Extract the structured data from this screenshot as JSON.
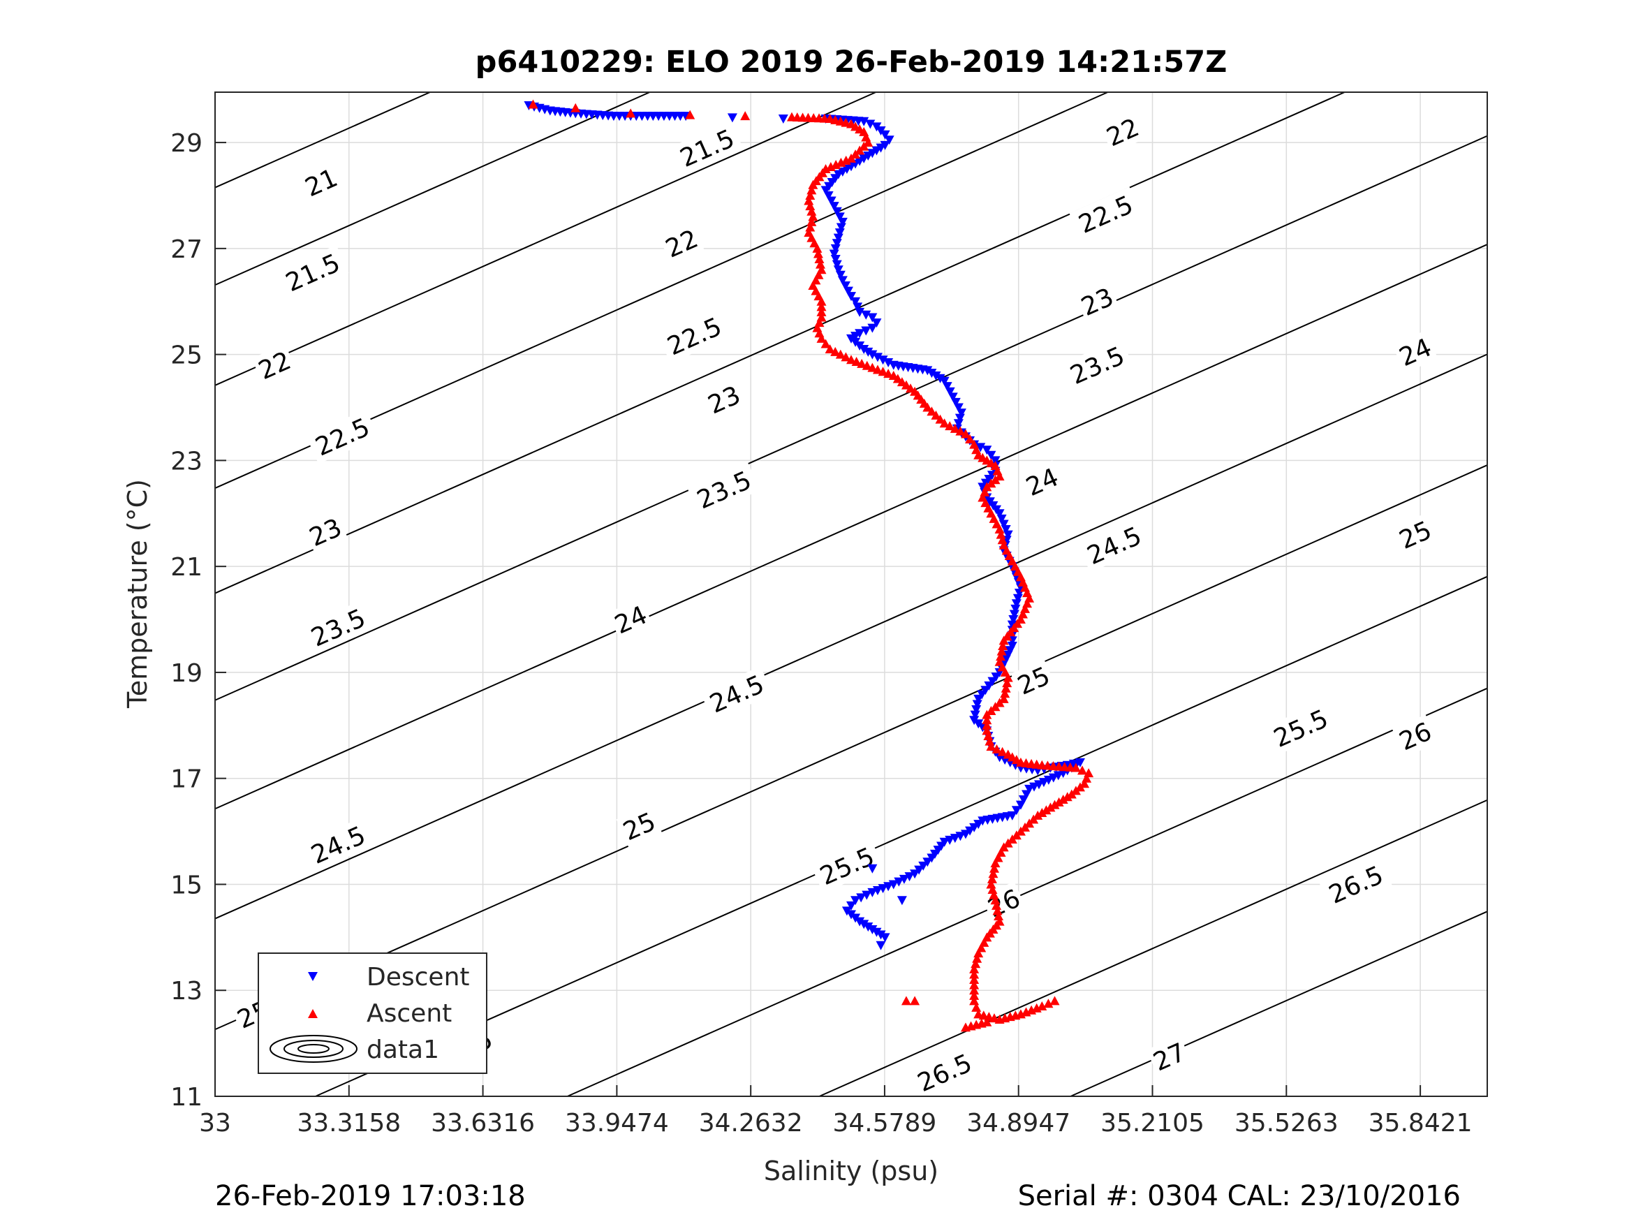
{
  "chart_data": {
    "type": "scatter",
    "title": "p6410229: ELO 2019 26-Feb-2019 14:21:57Z",
    "xlabel": "Salinity (psu)",
    "ylabel": "Temperature (°C)",
    "xlim": [
      33,
      36.0
    ],
    "ylim": [
      11,
      29.95
    ],
    "x_ticks": [
      "33",
      "33.3158",
      "33.6316",
      "33.9474",
      "34.2632",
      "34.5789",
      "34.8947",
      "35.2105",
      "35.5263",
      "35.8421"
    ],
    "y_ticks": [
      "11",
      "13",
      "15",
      "17",
      "19",
      "21",
      "23",
      "25",
      "27",
      "29"
    ],
    "grid": true,
    "legend_position": "bottom-left",
    "legend": [
      "Descent",
      "Ascent",
      "data1"
    ],
    "contours": {
      "name": "data1",
      "levels": [
        21,
        21.5,
        22,
        22.5,
        23,
        23.5,
        24,
        24.5,
        25,
        25.5,
        26,
        26.5,
        27
      ],
      "labels": [
        {
          "level": "21",
          "s": 33.25,
          "t": 28.25
        },
        {
          "level": "21.5",
          "s": 34.16,
          "t": 28.9
        },
        {
          "level": "22",
          "s": 35.14,
          "t": 29.2
        },
        {
          "level": "21.5",
          "s": 33.23,
          "t": 26.55
        },
        {
          "level": "22",
          "s": 34.1,
          "t": 27.1
        },
        {
          "level": "22.5",
          "s": 35.1,
          "t": 27.65
        },
        {
          "level": "22",
          "s": 33.14,
          "t": 24.8
        },
        {
          "level": "22.5",
          "s": 34.13,
          "t": 25.35
        },
        {
          "level": "23",
          "s": 35.08,
          "t": 26.0
        },
        {
          "level": "22.5",
          "s": 33.3,
          "t": 23.45
        },
        {
          "level": "23",
          "s": 34.2,
          "t": 24.15
        },
        {
          "level": "23.5",
          "s": 35.08,
          "t": 24.8
        },
        {
          "level": "24",
          "s": 35.83,
          "t": 25.05
        },
        {
          "level": "23",
          "s": 33.26,
          "t": 21.65
        },
        {
          "level": "23.5",
          "s": 34.2,
          "t": 22.45
        },
        {
          "level": "24",
          "s": 34.95,
          "t": 22.6
        },
        {
          "level": "23.5",
          "s": 33.29,
          "t": 19.85
        },
        {
          "level": "24",
          "s": 33.98,
          "t": 20.0
        },
        {
          "level": "24.5",
          "s": 35.12,
          "t": 21.4
        },
        {
          "level": "25",
          "s": 35.83,
          "t": 21.6
        },
        {
          "level": "24.5",
          "s": 34.23,
          "t": 18.6
        },
        {
          "level": "25",
          "s": 34.93,
          "t": 18.85
        },
        {
          "level": "25.5",
          "s": 35.56,
          "t": 17.95
        },
        {
          "level": "24.5",
          "s": 33.29,
          "t": 15.75
        },
        {
          "level": "25",
          "s": 34.0,
          "t": 16.1
        },
        {
          "level": "25.5",
          "s": 34.49,
          "t": 15.35
        },
        {
          "level": "26",
          "s": 35.83,
          "t": 17.8
        },
        {
          "level": "25",
          "s": 33.09,
          "t": 12.55
        },
        {
          "level": "25.5",
          "s": 33.59,
          "t": 11.9
        },
        {
          "level": "26",
          "s": 34.86,
          "t": 14.65
        },
        {
          "level": "26.5",
          "s": 35.69,
          "t": 15.0
        },
        {
          "level": "26.5",
          "s": 34.72,
          "t": 11.45
        },
        {
          "level": "27",
          "s": 35.25,
          "t": 11.75
        }
      ]
    },
    "series": [
      {
        "name": "Descent",
        "color": "#0000ff",
        "marker": "triangle-down",
        "x": [
          33.74,
          33.79,
          33.85,
          33.94,
          34.02,
          34.11,
          34.22,
          34.34,
          34.44,
          34.53,
          34.56,
          34.58,
          34.59,
          34.58,
          34.55,
          34.51,
          34.47,
          34.44,
          34.46,
          34.48,
          34.47,
          34.46,
          34.47,
          34.48,
          34.5,
          34.51,
          34.52,
          34.55,
          34.56,
          34.55,
          34.52,
          34.5,
          34.53,
          34.55,
          34.6,
          34.68,
          34.72,
          34.74,
          34.76,
          34.75,
          34.79,
          34.82,
          34.84,
          34.84,
          34.81,
          34.82,
          34.85,
          34.87,
          34.86,
          34.88,
          34.9,
          34.89,
          34.88,
          34.88,
          34.85,
          34.8,
          34.79,
          34.82,
          34.83,
          34.85,
          34.9,
          34.94,
          34.97,
          35.01,
          35.04,
          35.0,
          34.92,
          34.9,
          34.88,
          34.81,
          34.77,
          34.72,
          34.69,
          34.65,
          34.6,
          34.55,
          34.51,
          34.49,
          34.52,
          34.55,
          34.58,
          34.57,
          34.62,
          34.55
        ],
        "y": [
          29.7,
          29.6,
          29.55,
          29.5,
          29.5,
          29.5,
          29.47,
          29.45,
          29.45,
          29.4,
          29.3,
          29.15,
          29.05,
          28.95,
          28.8,
          28.6,
          28.4,
          28.1,
          27.8,
          27.5,
          27.2,
          26.9,
          26.6,
          26.4,
          26.1,
          26.0,
          25.8,
          25.7,
          25.6,
          25.5,
          25.4,
          25.3,
          25.1,
          25.0,
          24.8,
          24.7,
          24.5,
          24.2,
          23.9,
          23.6,
          23.3,
          23.2,
          23.0,
          22.8,
          22.5,
          22.3,
          22.0,
          21.6,
          21.3,
          21.0,
          20.6,
          20.3,
          19.9,
          19.5,
          19.0,
          18.5,
          18.1,
          17.9,
          17.6,
          17.4,
          17.2,
          17.15,
          17.2,
          17.25,
          17.3,
          17.1,
          16.8,
          16.5,
          16.3,
          16.2,
          15.95,
          15.8,
          15.5,
          15.2,
          15.0,
          14.85,
          14.7,
          14.5,
          14.3,
          14.15,
          14.0,
          13.85,
          14.7,
          15.3
        ]
      },
      {
        "name": "Ascent",
        "color": "#ff0000",
        "marker": "triangle-up",
        "x": [
          33.75,
          33.85,
          33.98,
          34.12,
          34.25,
          34.36,
          34.45,
          34.5,
          34.53,
          34.54,
          34.5,
          34.44,
          34.41,
          34.4,
          34.41,
          34.4,
          34.42,
          34.43,
          34.41,
          34.43,
          34.43,
          34.42,
          34.43,
          34.45,
          34.5,
          34.55,
          34.6,
          34.65,
          34.68,
          34.72,
          34.77,
          34.79,
          34.8,
          34.84,
          34.85,
          34.82,
          34.81,
          34.83,
          34.85,
          34.86,
          34.88,
          34.9,
          34.92,
          34.9,
          34.86,
          34.85,
          34.87,
          34.86,
          34.82,
          34.82,
          34.83,
          34.87,
          34.9,
          34.95,
          35.03,
          35.06,
          35.05,
          35.02,
          34.98,
          34.94,
          34.9,
          34.86,
          34.84,
          34.83,
          34.84,
          34.85,
          34.82,
          34.8,
          34.79,
          34.79,
          34.79,
          34.8,
          34.85,
          34.9,
          34.95,
          34.98,
          34.82,
          34.77,
          34.63,
          34.65
        ],
        "y": [
          29.72,
          29.65,
          29.55,
          29.52,
          29.5,
          29.48,
          29.45,
          29.35,
          29.2,
          29.0,
          28.7,
          28.5,
          28.2,
          27.9,
          27.6,
          27.3,
          27.0,
          26.6,
          26.3,
          26.0,
          25.7,
          25.5,
          25.3,
          25.1,
          24.9,
          24.75,
          24.6,
          24.3,
          24.0,
          23.7,
          23.5,
          23.3,
          23.1,
          22.9,
          22.7,
          22.5,
          22.3,
          22.0,
          21.7,
          21.4,
          21.1,
          20.8,
          20.4,
          20.0,
          19.6,
          19.2,
          18.9,
          18.5,
          18.2,
          17.9,
          17.6,
          17.45,
          17.3,
          17.25,
          17.2,
          17.1,
          16.9,
          16.7,
          16.5,
          16.3,
          16.0,
          15.7,
          15.4,
          15.0,
          14.7,
          14.3,
          14.0,
          13.7,
          13.4,
          13.1,
          12.8,
          12.55,
          12.45,
          12.55,
          12.7,
          12.8,
          12.4,
          12.3,
          12.8,
          12.8
        ]
      }
    ]
  },
  "footer": {
    "left": "26-Feb-2019 17:03:18",
    "right": "Serial #: 0304  CAL: 23/10/2016"
  }
}
